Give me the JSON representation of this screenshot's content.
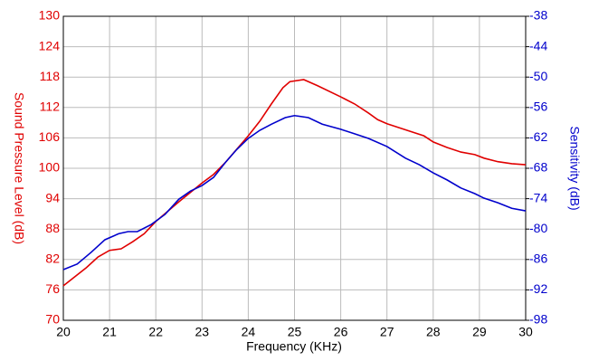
{
  "chart_data": {
    "type": "line",
    "xlabel": "Frequency (KHz)",
    "ylabel": "Sound Pressure Level (dB)",
    "y2label": "Sensitivity (dB)",
    "xlim": [
      20,
      30
    ],
    "xticks": [
      20,
      21,
      22,
      23,
      24,
      25,
      26,
      27,
      28,
      29,
      30
    ],
    "ylim": [
      70,
      130
    ],
    "yticks": [
      70,
      76,
      82,
      88,
      94,
      100,
      106,
      112,
      118,
      124,
      130
    ],
    "y2lim": [
      -98,
      -38
    ],
    "y2ticks": [
      -98,
      -92,
      -86,
      -80,
      -74,
      -68,
      -62,
      -56,
      -50,
      -44,
      -38
    ],
    "grid": true,
    "ycolor": "#e00000",
    "y2color": "#0000cc",
    "series": [
      {
        "name": "Sound Pressure Level",
        "color": "#e00000",
        "axis": "y",
        "x": [
          20.0,
          20.5,
          20.75,
          21.0,
          21.25,
          21.5,
          21.75,
          22.0,
          22.5,
          23.0,
          23.25,
          23.5,
          24.0,
          24.25,
          24.5,
          24.75,
          24.9,
          25.2,
          25.5,
          26.0,
          26.3,
          26.6,
          26.8,
          27.0,
          27.5,
          27.8,
          28.0,
          28.3,
          28.6,
          28.9,
          29.1,
          29.4,
          29.7,
          30.0
        ],
        "values": [
          76.8,
          80.4,
          82.5,
          83.8,
          84.1,
          85.5,
          87.1,
          89.5,
          93.4,
          97.1,
          98.8,
          101.1,
          106.4,
          109.3,
          112.7,
          115.9,
          117.1,
          117.5,
          116.3,
          114.1,
          112.7,
          110.9,
          109.6,
          108.8,
          107.3,
          106.4,
          105.2,
          104.1,
          103.2,
          102.7,
          102.0,
          101.3,
          100.9,
          100.7
        ]
      },
      {
        "name": "Sensitivity",
        "color": "#0000cc",
        "axis": "y2",
        "x": [
          20.0,
          20.3,
          20.6,
          20.9,
          21.2,
          21.4,
          21.6,
          21.9,
          22.2,
          22.5,
          22.75,
          23.0,
          23.25,
          23.5,
          23.75,
          24.0,
          24.25,
          24.5,
          24.8,
          25.0,
          25.3,
          25.6,
          26.0,
          26.3,
          26.6,
          27.0,
          27.4,
          27.7,
          28.0,
          28.3,
          28.6,
          28.9,
          29.1,
          29.4,
          29.7,
          30.0
        ],
        "values": [
          -88.0,
          -86.9,
          -84.6,
          -82.1,
          -80.9,
          -80.5,
          -80.5,
          -79.1,
          -77.1,
          -74.1,
          -72.5,
          -71.4,
          -69.8,
          -66.9,
          -64.3,
          -62.1,
          -60.5,
          -59.3,
          -58.0,
          -57.6,
          -58.0,
          -59.3,
          -60.3,
          -61.2,
          -62.1,
          -63.7,
          -66.0,
          -67.3,
          -68.9,
          -70.3,
          -71.9,
          -73.0,
          -73.9,
          -74.8,
          -75.9,
          -76.4
        ]
      }
    ]
  }
}
